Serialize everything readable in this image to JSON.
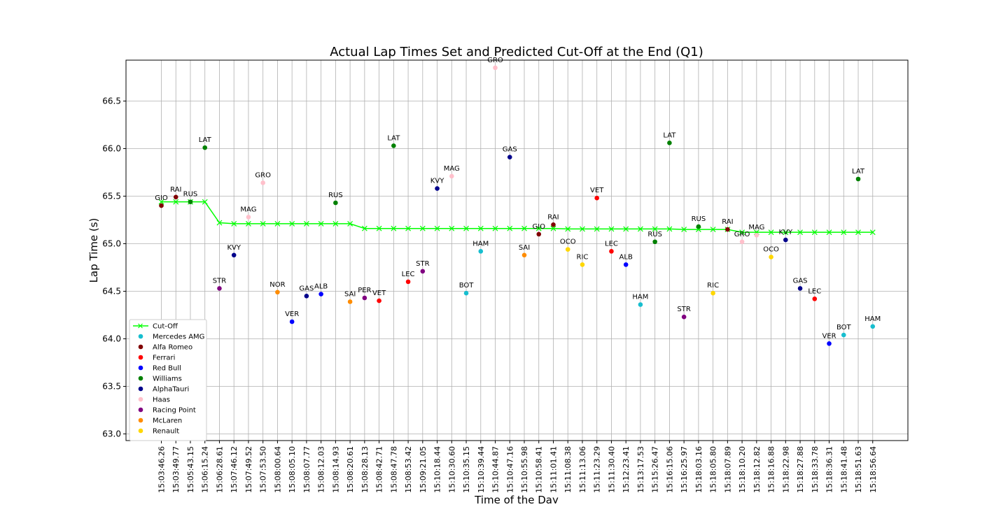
{
  "chart_data": {
    "type": "scatter",
    "title": "Actual Lap Times Set and Predicted Cut-Off at the End (Q1)",
    "xlabel": "Time of the Day",
    "ylabel": "Lap Time (s)",
    "ylim": [
      62.93,
      66.93
    ],
    "yticks": [
      63.0,
      63.5,
      64.0,
      64.5,
      65.0,
      65.5,
      66.0,
      66.5
    ],
    "grid": true,
    "legend_position": "lower-left",
    "categories": [
      "15:03:46.26",
      "15:03:49.77",
      "15:05:43.15",
      "15:06:15.24",
      "15:06:28.61",
      "15:07:46.12",
      "15:07:49.52",
      "15:07:53.50",
      "15:08:00.64",
      "15:08:05.10",
      "15:08:07.77",
      "15:08:12.03",
      "15:08:14.93",
      "15:08:20.61",
      "15:08:28.13",
      "15:08:42.71",
      "15:08:47.78",
      "15:08:53.42",
      "15:09:21.05",
      "15:10:18.44",
      "15:10:30.60",
      "15:10:35.15",
      "15:10:39.44",
      "15:10:44.87",
      "15:10:47.16",
      "15:10:55.98",
      "15:10:58.41",
      "15:11:01.41",
      "15:11:08.38",
      "15:11:13.06",
      "15:11:23.29",
      "15:11:30.40",
      "15:12:23.41",
      "15:13:17.53",
      "15:15:26.47",
      "15:16:15.06",
      "15:16:25.97",
      "15:18:03.16",
      "15:18:05.80",
      "15:18:07.89",
      "15:18:10.20",
      "15:18:12.82",
      "15:18:16.88",
      "15:18:22.98",
      "15:18:27.88",
      "15:18:33.78",
      "15:18:36.31",
      "15:18:41.48",
      "15:18:51.63",
      "15:18:56.64"
    ],
    "cutoff": {
      "name": "Cut-Off",
      "color": "#00ff00",
      "values": [
        65.44,
        65.44,
        65.44,
        65.44,
        65.22,
        65.21,
        65.21,
        65.21,
        65.21,
        65.21,
        65.21,
        65.21,
        65.21,
        65.21,
        65.16,
        65.16,
        65.16,
        65.16,
        65.16,
        65.16,
        65.16,
        65.16,
        65.16,
        65.16,
        65.16,
        65.16,
        65.16,
        65.16,
        65.155,
        65.155,
        65.155,
        65.155,
        65.155,
        65.155,
        65.155,
        65.155,
        65.15,
        65.15,
        65.15,
        65.15,
        65.12,
        65.12,
        65.12,
        65.12,
        65.12,
        65.12,
        65.12,
        65.12,
        65.12,
        65.12
      ]
    },
    "teams": [
      {
        "name": "Mercedes AMG",
        "color": "#17becf"
      },
      {
        "name": "Alfa Romeo",
        "color": "#800000"
      },
      {
        "name": "Ferrari",
        "color": "#ff0000"
      },
      {
        "name": "Red Bull",
        "color": "#0000ff"
      },
      {
        "name": "Williams",
        "color": "#008000"
      },
      {
        "name": "AlphaTauri",
        "color": "#00008b"
      },
      {
        "name": "Haas",
        "color": "#ffc0cb"
      },
      {
        "name": "Racing Point",
        "color": "#800080"
      },
      {
        "name": "McLaren",
        "color": "#ff8c00"
      },
      {
        "name": "Renault",
        "color": "#ffd700"
      }
    ],
    "points": [
      {
        "x": 0,
        "y": 65.4,
        "driver": "GIO",
        "team": "Alfa Romeo"
      },
      {
        "x": 1,
        "y": 65.49,
        "driver": "RAI",
        "team": "Alfa Romeo"
      },
      {
        "x": 2,
        "y": 65.44,
        "driver": "RUS",
        "team": "Williams"
      },
      {
        "x": 3,
        "y": 66.01,
        "driver": "LAT",
        "team": "Williams"
      },
      {
        "x": 4,
        "y": 64.53,
        "driver": "STR",
        "team": "Racing Point"
      },
      {
        "x": 5,
        "y": 64.88,
        "driver": "KVY",
        "team": "AlphaTauri"
      },
      {
        "x": 6,
        "y": 65.28,
        "driver": "MAG",
        "team": "Haas"
      },
      {
        "x": 7,
        "y": 65.64,
        "driver": "GRO",
        "team": "Haas"
      },
      {
        "x": 8,
        "y": 64.49,
        "driver": "NOR",
        "team": "McLaren"
      },
      {
        "x": 9,
        "y": 64.18,
        "driver": "VER",
        "team": "Red Bull"
      },
      {
        "x": 10,
        "y": 64.45,
        "driver": "GAS",
        "team": "AlphaTauri"
      },
      {
        "x": 11,
        "y": 64.47,
        "driver": "ALB",
        "team": "Red Bull"
      },
      {
        "x": 12,
        "y": 65.43,
        "driver": "RUS",
        "team": "Williams"
      },
      {
        "x": 13,
        "y": 64.39,
        "driver": "SAI",
        "team": "McLaren"
      },
      {
        "x": 14,
        "y": 64.43,
        "driver": "PER",
        "team": "Racing Point"
      },
      {
        "x": 15,
        "y": 64.4,
        "driver": "VET",
        "team": "Ferrari"
      },
      {
        "x": 16,
        "y": 66.03,
        "driver": "LAT",
        "team": "Williams"
      },
      {
        "x": 17,
        "y": 64.6,
        "driver": "LEC",
        "team": "Ferrari"
      },
      {
        "x": 18,
        "y": 64.71,
        "driver": "STR",
        "team": "Racing Point"
      },
      {
        "x": 19,
        "y": 65.58,
        "driver": "KVY",
        "team": "AlphaTauri"
      },
      {
        "x": 20,
        "y": 65.71,
        "driver": "MAG",
        "team": "Haas"
      },
      {
        "x": 21,
        "y": 64.48,
        "driver": "BOT",
        "team": "Mercedes AMG"
      },
      {
        "x": 22,
        "y": 64.92,
        "driver": "HAM",
        "team": "Mercedes AMG"
      },
      {
        "x": 23,
        "y": 66.85,
        "driver": "GRO",
        "team": "Haas"
      },
      {
        "x": 24,
        "y": 65.91,
        "driver": "GAS",
        "team": "AlphaTauri"
      },
      {
        "x": 25,
        "y": 64.88,
        "driver": "SAI",
        "team": "McLaren"
      },
      {
        "x": 26,
        "y": 65.1,
        "driver": "GIO",
        "team": "Alfa Romeo"
      },
      {
        "x": 27,
        "y": 65.2,
        "driver": "RAI",
        "team": "Alfa Romeo"
      },
      {
        "x": 28,
        "y": 64.94,
        "driver": "OCO",
        "team": "Renault"
      },
      {
        "x": 29,
        "y": 64.78,
        "driver": "RIC",
        "team": "Renault"
      },
      {
        "x": 30,
        "y": 65.48,
        "driver": "VET",
        "team": "Ferrari"
      },
      {
        "x": 31,
        "y": 64.92,
        "driver": "LEC",
        "team": "Ferrari"
      },
      {
        "x": 32,
        "y": 64.78,
        "driver": "ALB",
        "team": "Red Bull"
      },
      {
        "x": 33,
        "y": 64.36,
        "driver": "HAM",
        "team": "Mercedes AMG"
      },
      {
        "x": 34,
        "y": 65.02,
        "driver": "RUS",
        "team": "Williams"
      },
      {
        "x": 35,
        "y": 66.06,
        "driver": "LAT",
        "team": "Williams"
      },
      {
        "x": 36,
        "y": 64.23,
        "driver": "STR",
        "team": "Racing Point"
      },
      {
        "x": 37,
        "y": 65.18,
        "driver": "RUS",
        "team": "Williams"
      },
      {
        "x": 38,
        "y": 64.48,
        "driver": "RIC",
        "team": "Renault"
      },
      {
        "x": 39,
        "y": 65.15,
        "driver": "RAI",
        "team": "Alfa Romeo"
      },
      {
        "x": 40,
        "y": 65.02,
        "driver": "GRO",
        "team": "Haas"
      },
      {
        "x": 41,
        "y": 65.09,
        "driver": "MAG",
        "team": "Haas"
      },
      {
        "x": 42,
        "y": 64.86,
        "driver": "OCO",
        "team": "Renault"
      },
      {
        "x": 43,
        "y": 65.04,
        "driver": "KVY",
        "team": "AlphaTauri"
      },
      {
        "x": 44,
        "y": 64.53,
        "driver": "GAS",
        "team": "AlphaTauri"
      },
      {
        "x": 45,
        "y": 64.42,
        "driver": "LEC",
        "team": "Ferrari"
      },
      {
        "x": 46,
        "y": 63.95,
        "driver": "VER",
        "team": "Red Bull"
      },
      {
        "x": 47,
        "y": 64.04,
        "driver": "BOT",
        "team": "Mercedes AMG"
      },
      {
        "x": 48,
        "y": 65.68,
        "driver": "LAT",
        "team": "Williams"
      },
      {
        "x": 49,
        "y": 64.13,
        "driver": "HAM",
        "team": "Mercedes AMG"
      }
    ]
  }
}
